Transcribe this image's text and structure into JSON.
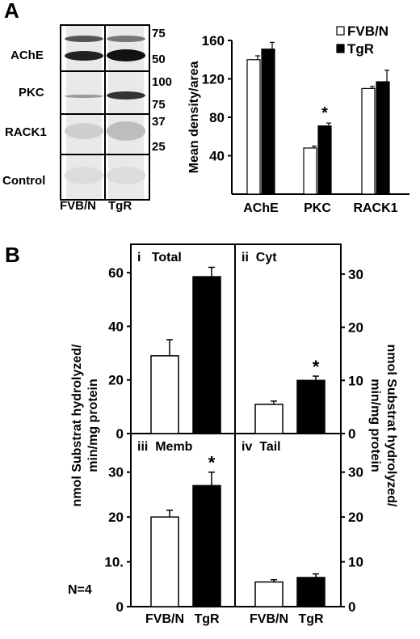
{
  "panel_a": {
    "letter": "A",
    "blot": {
      "rows": [
        "AChE",
        "PKC",
        "RACK1",
        "Control"
      ],
      "mw_markers": [
        "75",
        "50",
        "100",
        "75",
        "37",
        "25"
      ],
      "lanes": [
        "FVB/N",
        "TgR"
      ]
    }
  },
  "panel_b": {
    "letter": "B",
    "n_label": "N=4",
    "left_axis_label": "nmol Substrat hydrolyzed/ min/mg protein",
    "right_axis_label": "nmol Substrat hydrolyzed/ min/mg protein",
    "subpanel_titles": [
      "i   Total",
      "ii  Cyt",
      "iii  Memb",
      "iv  Tail"
    ]
  },
  "chart_data": [
    {
      "type": "bar",
      "panel": "A",
      "categories": [
        "AChE",
        "PKC",
        "RACK1"
      ],
      "series": [
        {
          "name": "FVB/N",
          "values": [
            140,
            48,
            110
          ],
          "errors": [
            4,
            2,
            2
          ],
          "color": "#ffffff"
        },
        {
          "name": "TgR",
          "values": [
            151,
            71,
            117
          ],
          "errors": [
            7,
            3,
            12
          ],
          "color": "#000000"
        }
      ],
      "significance": [
        {
          "category": "PKC",
          "series": "TgR",
          "mark": "*"
        }
      ],
      "ylabel": "Mean density/area",
      "ylim": [
        0,
        160
      ],
      "yticks": [
        40,
        80,
        120,
        160
      ],
      "legend": "top-right"
    },
    {
      "type": "bar",
      "panel": "B-i",
      "title": "i   Total",
      "categories": [
        "FVB/N",
        "TgR"
      ],
      "values": [
        29,
        58.5
      ],
      "errors": [
        6,
        3.5
      ],
      "colors": [
        "#ffffff",
        "#000000"
      ],
      "ylim": [
        0,
        70
      ],
      "yticks": [
        0,
        20,
        40,
        60
      ],
      "axis": "left"
    },
    {
      "type": "bar",
      "panel": "B-ii",
      "title": "ii  Cyt",
      "categories": [
        "FVB/N",
        "TgR"
      ],
      "values": [
        5.5,
        10
      ],
      "errors": [
        0.6,
        0.8
      ],
      "colors": [
        "#ffffff",
        "#000000"
      ],
      "ylim": [
        0,
        35
      ],
      "yticks": [
        0,
        10,
        20,
        30
      ],
      "axis": "right",
      "significance": [
        {
          "category": "TgR",
          "mark": "*"
        }
      ]
    },
    {
      "type": "bar",
      "panel": "B-iii",
      "title": "iii  Memb",
      "categories": [
        "FVB/N",
        "TgR"
      ],
      "values": [
        20,
        27
      ],
      "errors": [
        1.5,
        3
      ],
      "colors": [
        "#ffffff",
        "#000000"
      ],
      "ylim": [
        0,
        35
      ],
      "yticks": [
        0,
        10,
        20,
        30
      ],
      "ytick_labels": [
        "0",
        "10.",
        "20",
        "30"
      ],
      "axis": "left",
      "significance": [
        {
          "category": "TgR",
          "mark": "*"
        }
      ]
    },
    {
      "type": "bar",
      "panel": "B-iv",
      "title": "iv  Tail",
      "categories": [
        "FVB/N",
        "TgR"
      ],
      "values": [
        5.5,
        6.5
      ],
      "errors": [
        0.5,
        0.8
      ],
      "colors": [
        "#ffffff",
        "#000000"
      ],
      "ylim": [
        0,
        35
      ],
      "yticks": [
        0,
        10,
        20,
        30
      ],
      "axis": "right"
    }
  ]
}
